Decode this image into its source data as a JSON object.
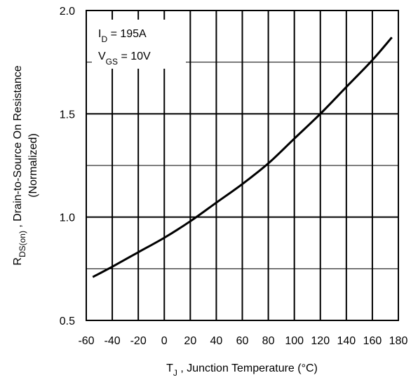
{
  "chart_data": {
    "type": "line",
    "title": "",
    "xlabel": {
      "main": "T",
      "sub": "J",
      "rest": " , Junction Temperature (°C)"
    },
    "ylabel": {
      "main": "R",
      "sub": "DS(on)",
      "rest": " , Drain-to-Source On Resistance",
      "line2": "(Normalized)"
    },
    "xlim": [
      -60,
      180
    ],
    "ylim": [
      0.5,
      2.0
    ],
    "x_ticks": [
      -60,
      -40,
      -20,
      0,
      20,
      40,
      60,
      80,
      100,
      120,
      140,
      160,
      180
    ],
    "y_ticks": [
      0.5,
      1.0,
      1.5,
      2.0
    ],
    "x_tick_labels": [
      "-60",
      "-40",
      "-20",
      "0",
      "20",
      "40",
      "60",
      "80",
      "100",
      "120",
      "140",
      "160",
      "180"
    ],
    "y_tick_labels": [
      "0.5",
      "1.0",
      "1.5",
      "2.0"
    ],
    "grid": true,
    "legend": "none",
    "annotations": [
      {
        "main": "I",
        "sub": "D",
        "rest": " = 195A"
      },
      {
        "main": "V",
        "sub": "GS",
        "rest": " = 10V"
      }
    ],
    "series": [
      {
        "color": "#000000",
        "x": [
          -55,
          -40,
          -20,
          0,
          20,
          40,
          60,
          80,
          100,
          120,
          140,
          160,
          175
        ],
        "y": [
          0.71,
          0.76,
          0.83,
          0.9,
          0.98,
          1.07,
          1.16,
          1.26,
          1.38,
          1.5,
          1.63,
          1.76,
          1.87
        ]
      }
    ]
  }
}
